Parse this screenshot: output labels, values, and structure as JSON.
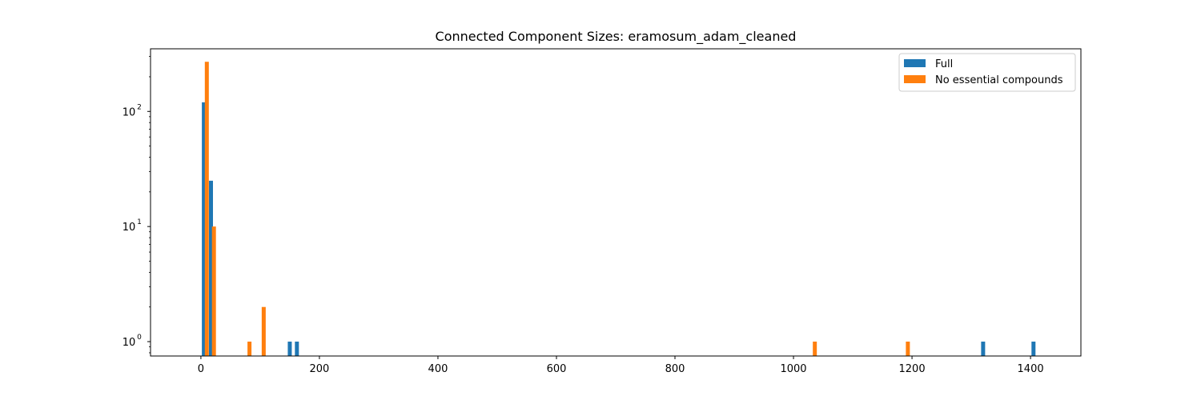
{
  "chart_data": {
    "type": "bar",
    "title": "Connected Component Sizes: eramosum_adam_cleaned",
    "xlabel": "",
    "ylabel": "",
    "x_scale": "linear",
    "y_scale": "log",
    "xlim": [
      -85,
      1485
    ],
    "ylim": [
      0.75,
      350
    ],
    "x_ticks": [
      0,
      200,
      400,
      600,
      800,
      1000,
      1200,
      1400
    ],
    "x_tick_labels": [
      "0",
      "200",
      "400",
      "600",
      "800",
      "1000",
      "1200",
      "1400"
    ],
    "y_ticks": [
      1,
      10,
      100
    ],
    "y_tick_labels": [
      "10",
      "10",
      "10"
    ],
    "y_tick_exponents": [
      "0",
      "1",
      "2"
    ],
    "grid": false,
    "legend_position": "top-right",
    "series": [
      {
        "name": "Full",
        "color": "#1f77b4",
        "bars": [
          {
            "x": 5,
            "value": 120
          },
          {
            "x": 17,
            "value": 25
          },
          {
            "x": 150,
            "value": 1
          },
          {
            "x": 162,
            "value": 1
          },
          {
            "x": 1320,
            "value": 1
          },
          {
            "x": 1405,
            "value": 1
          }
        ]
      },
      {
        "name": "No essential compounds",
        "color": "#ff7f0e",
        "bars": [
          {
            "x": 10,
            "value": 270
          },
          {
            "x": 22,
            "value": 10
          },
          {
            "x": 82,
            "value": 1
          },
          {
            "x": 106,
            "value": 2
          },
          {
            "x": 1036,
            "value": 1
          },
          {
            "x": 1193,
            "value": 1
          }
        ]
      }
    ]
  }
}
